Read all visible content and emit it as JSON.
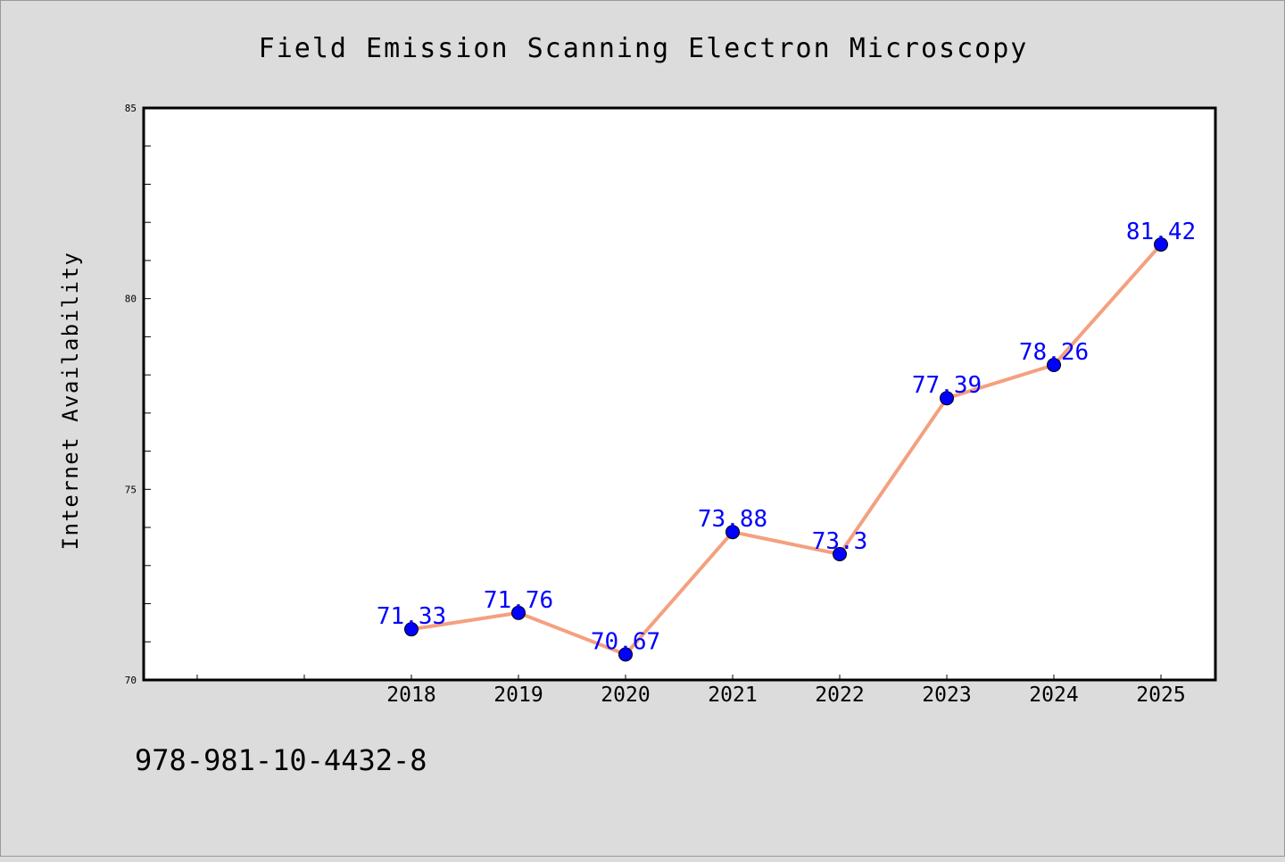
{
  "chart_data": {
    "type": "line",
    "title": "Field Emission Scanning Electron Microscopy",
    "xlabel": "",
    "ylabel": "Internet Availability",
    "categories": [
      "2018",
      "2019",
      "2020",
      "2021",
      "2022",
      "2023",
      "2024",
      "2025"
    ],
    "series": [
      {
        "values": [
          71.33,
          71.76,
          70.67,
          73.88,
          73.3,
          77.39,
          78.26,
          81.42
        ],
        "data_labels": [
          "71.33",
          "71.76",
          "70.67",
          "73.88",
          "73.3",
          "77.39",
          "78.26",
          "81.42"
        ]
      }
    ],
    "ylim": [
      70,
      85
    ],
    "y_ticks": [
      "70",
      "75",
      "80",
      "85"
    ],
    "grid": false,
    "legend": "none",
    "colors": {
      "line": "#f4a07f",
      "marker": "#0000ff",
      "data_label": "#0000ff",
      "plot_background": "#ffffff",
      "figure_background": "#dcdcdc"
    }
  },
  "footer": {
    "code": "978-981-10-4432-8"
  }
}
